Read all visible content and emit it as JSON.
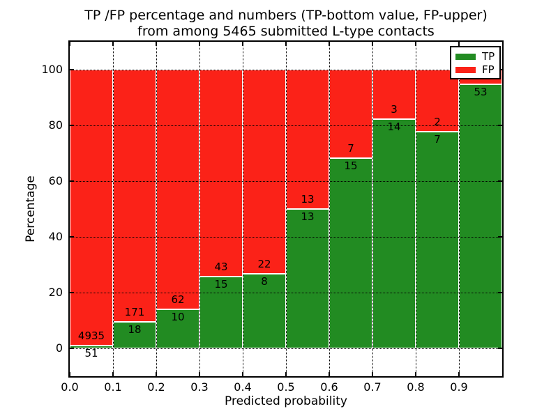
{
  "title": {
    "line1": "TP /FP percentage and numbers (TP-bottom value, FP-upper)",
    "line2": "from among 5465 submitted L-type contacts"
  },
  "axes": {
    "xlabel": "Predicted probability",
    "ylabel": "Percentage"
  },
  "legend": {
    "position": "upper right",
    "items": [
      {
        "label": "TP",
        "color": "#228b22"
      },
      {
        "label": "FP",
        "color": "#fb2218"
      }
    ]
  },
  "chart_data": {
    "type": "bar",
    "stacked": true,
    "title": "TP /FP percentage and numbers (TP-bottom value, FP-upper) from among 5465 submitted L-type contacts",
    "xlabel": "Predicted probability",
    "ylabel": "Percentage",
    "xlim": [
      0.0,
      1.0
    ],
    "ylim": [
      -10,
      110
    ],
    "grid": "dotted, both axes, drawn over bars",
    "bin_width": 0.1,
    "x_tick_labels": [
      "0.0",
      "0.1",
      "0.2",
      "0.3",
      "0.4",
      "0.5",
      "0.6",
      "0.7",
      "0.8",
      "0.9"
    ],
    "y_ticks": [
      0,
      20,
      40,
      60,
      80,
      100
    ],
    "y_tick_labels": [
      "0",
      "20",
      "40",
      "60",
      "80",
      "100"
    ],
    "bars_total_percent": 100,
    "series": [
      {
        "name": "TP",
        "color": "#228b22",
        "counts": [
          51,
          18,
          10,
          15,
          8,
          13,
          15,
          14,
          7,
          53
        ],
        "count_labels": [
          "51",
          "18",
          "10",
          "15",
          "8",
          "13",
          "15",
          "14",
          "7",
          "53"
        ],
        "percent": [
          1.02,
          9.52,
          13.89,
          25.86,
          26.67,
          50.0,
          68.18,
          82.35,
          77.78,
          94.64
        ]
      },
      {
        "name": "FP",
        "color": "#fb2218",
        "visible_count_labels": [
          "4935",
          "171",
          "62",
          "43",
          "22",
          "13",
          "7",
          "3",
          "2",
          ""
        ]
      }
    ]
  }
}
